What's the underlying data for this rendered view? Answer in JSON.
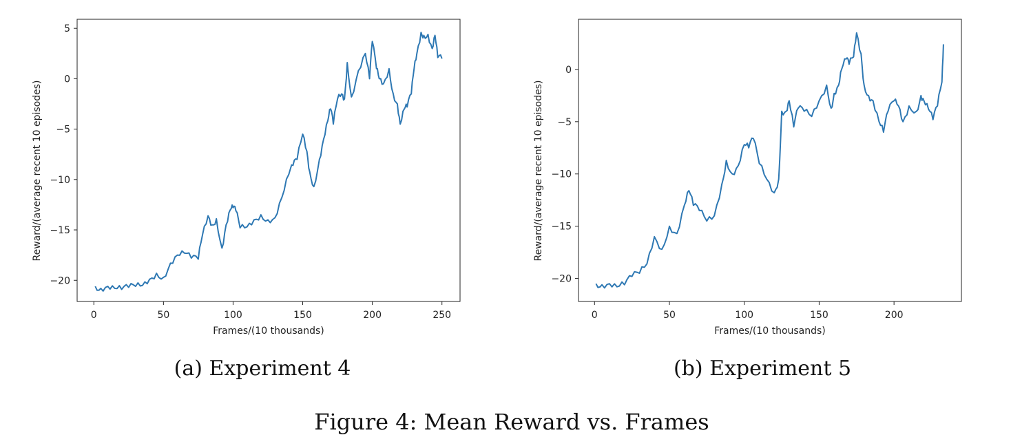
{
  "figure": {
    "caption": "Figure 4: Mean Reward vs. Frames"
  },
  "chart_data": [
    {
      "type": "line",
      "subcaption": "(a) Experiment 4",
      "xlabel": "Frames/(10 thousands)",
      "ylabel": "Reward/(average recent 10 episodes)",
      "xlim": [
        -12,
        263
      ],
      "ylim": [
        -22.1,
        5.9
      ],
      "xticks": [
        0,
        50,
        100,
        150,
        200,
        250
      ],
      "yticks": [
        -20,
        -15,
        -10,
        -5,
        0,
        5
      ],
      "grid": false,
      "line_color": "#2e78b3",
      "series": [
        {
          "name": "Experiment 4",
          "x": [
            1,
            5,
            10,
            15,
            20,
            25,
            30,
            35,
            40,
            45,
            50,
            55,
            60,
            65,
            70,
            75,
            78,
            82,
            85,
            88,
            92,
            95,
            98,
            100,
            102,
            105,
            110,
            115,
            120,
            125,
            130,
            135,
            140,
            143,
            146,
            150,
            153,
            155,
            158,
            162,
            165,
            168,
            170,
            172,
            175,
            178,
            180,
            182,
            185,
            190,
            195,
            198,
            200,
            203,
            205,
            208,
            212,
            215,
            218,
            220,
            223,
            225,
            228,
            230,
            232,
            235,
            237,
            240,
            243,
            245,
            247,
            250
          ],
          "values": [
            -20.6,
            -20.8,
            -20.6,
            -20.8,
            -20.9,
            -20.7,
            -20.6,
            -20.5,
            -19.9,
            -19.3,
            -19.7,
            -18.3,
            -17.5,
            -17.3,
            -17.8,
            -17.9,
            -15.5,
            -13.6,
            -14.5,
            -13.9,
            -16.8,
            -14.5,
            -13.0,
            -12.8,
            -13.1,
            -14.8,
            -14.7,
            -14.0,
            -13.5,
            -14.0,
            -13.8,
            -11.8,
            -9.5,
            -8.6,
            -8.0,
            -5.5,
            -7.2,
            -9.2,
            -10.7,
            -8.0,
            -6.0,
            -4.2,
            -3.0,
            -4.5,
            -2.0,
            -1.5,
            -2.0,
            1.6,
            -1.8,
            0.8,
            2.5,
            0.0,
            3.7,
            1.0,
            0.0,
            -0.5,
            1.0,
            -1.5,
            -2.5,
            -4.5,
            -3.0,
            -2.8,
            -1.5,
            1.0,
            2.5,
            4.6,
            4.3,
            4.4,
            3.0,
            4.3,
            2.1,
            2.0
          ]
        }
      ]
    },
    {
      "type": "line",
      "subcaption": "(b) Experiment 5",
      "xlabel": "Frames/(10 thousands)",
      "ylabel": "Reward/(average recent 10 episodes)",
      "xlim": [
        -10.7,
        245
      ],
      "ylim": [
        -22.2,
        4.8
      ],
      "xticks": [
        0,
        50,
        100,
        150,
        200
      ],
      "yticks": [
        -20,
        -15,
        -10,
        -5,
        0
      ],
      "grid": false,
      "line_color": "#2e78b3",
      "series": [
        {
          "name": "Experiment 5",
          "x": [
            1,
            5,
            10,
            15,
            20,
            25,
            30,
            35,
            40,
            45,
            50,
            55,
            60,
            63,
            66,
            70,
            75,
            80,
            85,
            88,
            92,
            96,
            100,
            103,
            106,
            110,
            115,
            120,
            123,
            125,
            128,
            130,
            133,
            136,
            140,
            145,
            150,
            155,
            158,
            160,
            163,
            165,
            168,
            170,
            173,
            175,
            178,
            180,
            183,
            186,
            190,
            193,
            196,
            200,
            203,
            206,
            210,
            215,
            218,
            220,
            223,
            226,
            229,
            232,
            233
          ],
          "values": [
            -20.5,
            -20.6,
            -20.5,
            -20.8,
            -20.6,
            -19.8,
            -19.5,
            -18.6,
            -16.0,
            -17.2,
            -15.0,
            -15.7,
            -13.0,
            -11.6,
            -13.0,
            -13.5,
            -14.5,
            -14.0,
            -11.0,
            -8.7,
            -10.0,
            -9.2,
            -7.2,
            -7.5,
            -6.6,
            -9.0,
            -10.5,
            -11.8,
            -10.5,
            -4.0,
            -4.0,
            -3.0,
            -5.5,
            -3.7,
            -4.0,
            -4.5,
            -3.0,
            -1.5,
            -3.7,
            -2.3,
            -1.5,
            0.0,
            1.0,
            0.5,
            1.2,
            3.5,
            1.5,
            -1.5,
            -2.5,
            -3.0,
            -5.0,
            -6.0,
            -4.0,
            -3.0,
            -3.5,
            -5.0,
            -3.5,
            -4.0,
            -2.5,
            -3.0,
            -3.8,
            -4.8,
            -3.5,
            -1.2,
            2.4
          ]
        }
      ]
    }
  ]
}
